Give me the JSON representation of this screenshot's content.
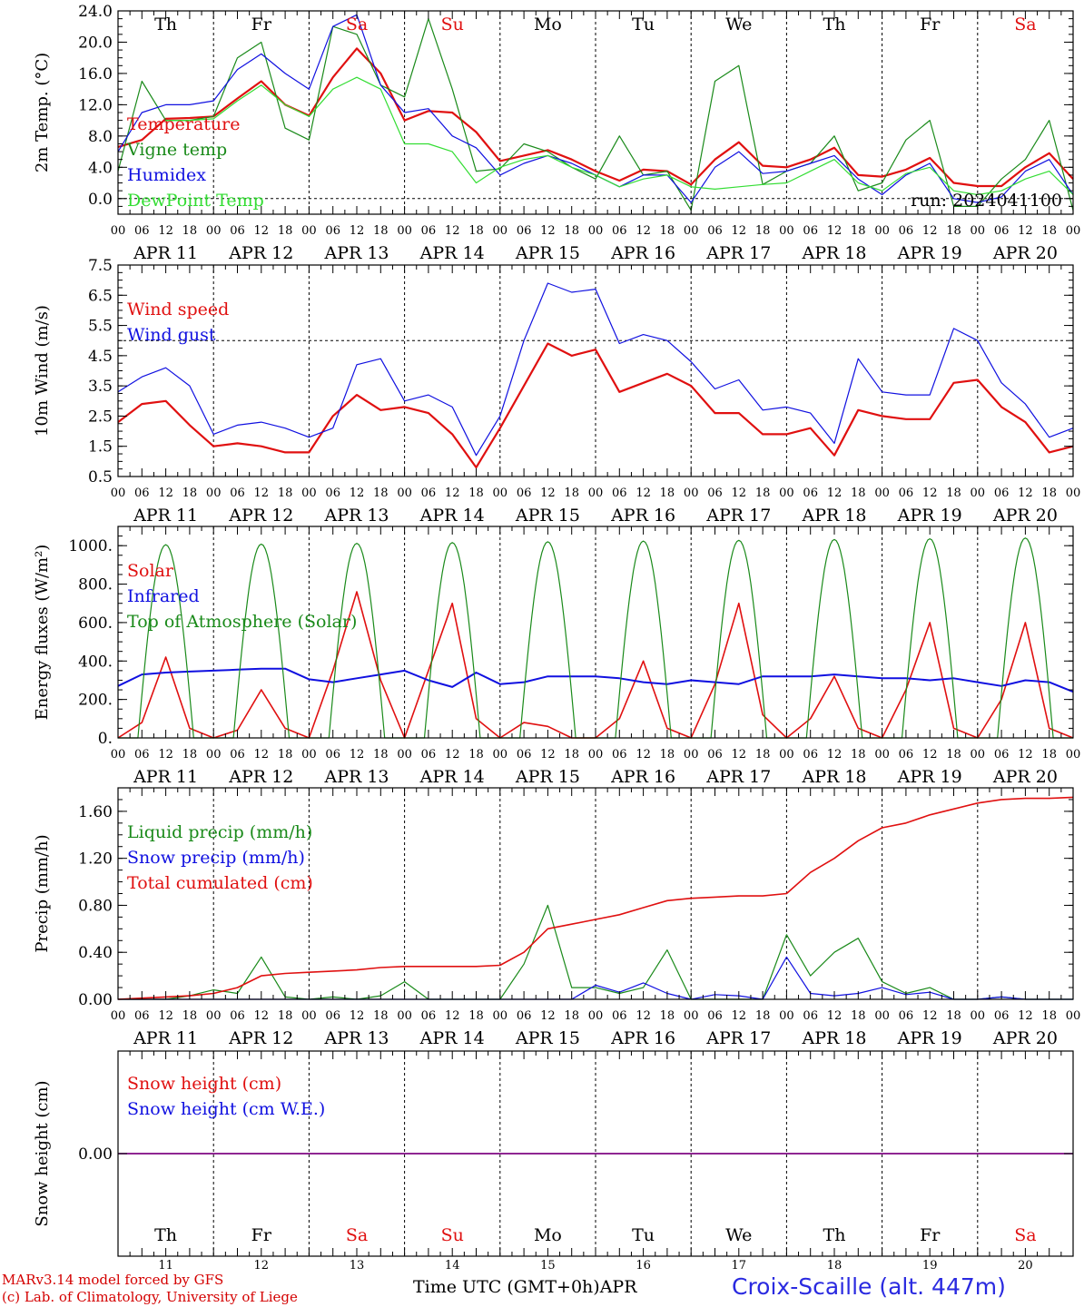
{
  "colors": {
    "red": "#e01010",
    "darkgreen": "#1a8a1a",
    "blue": "#1010e0",
    "lightgreen": "#33dd33",
    "purple": "#800080",
    "weekday": "#000000",
    "weekend": "#e01010"
  },
  "days": [
    "Th",
    "Fr",
    "Sa",
    "Su",
    "Mo",
    "Tu",
    "We",
    "Th",
    "Fr",
    "Sa"
  ],
  "weekend": [
    false,
    false,
    true,
    true,
    false,
    false,
    false,
    false,
    false,
    true
  ],
  "date_labels": [
    "APR 11",
    "APR 12",
    "APR 13",
    "APR 14",
    "APR 15",
    "APR 16",
    "APR 17",
    "APR 18",
    "APR 19",
    "APR 20"
  ],
  "day_numbers": [
    "11",
    "12",
    "13",
    "14",
    "15",
    "16",
    "17",
    "18",
    "19",
    "20"
  ],
  "hour_ticks": [
    "00",
    "06",
    "12",
    "18"
  ],
  "hour_end": "00",
  "footer": {
    "credit1": "MARv3.14 model forced by GFS",
    "credit2": "(c) Lab. of Climatology, University of Liege",
    "x_title": "Time UTC (GMT+0h)",
    "month": "APR",
    "station": "Croix-Scaille (alt. 447m)"
  },
  "chart_data": [
    {
      "type": "line",
      "ylabel": "2m Temp. (°C)",
      "ylim": [
        -2,
        24
      ],
      "yticks": [
        0,
        4,
        8,
        12,
        16,
        20,
        24
      ],
      "yticklabels": [
        "0.0",
        "4.0",
        "8.0",
        "12.0",
        "16.0",
        "20.0",
        "24.0"
      ],
      "annotation": "run: 2024041100",
      "show_days": true,
      "x_hours": [
        0,
        6,
        12,
        18,
        24,
        30,
        36,
        42,
        48,
        54,
        60,
        66,
        72,
        78,
        84,
        90,
        96,
        102,
        108,
        114,
        120,
        126,
        132,
        138,
        144,
        150,
        156,
        162,
        168,
        174,
        180,
        186,
        192,
        198,
        204,
        210,
        216,
        222,
        228,
        234,
        240
      ],
      "series": [
        {
          "name": "Temperature",
          "color": "red",
          "width": 2.2,
          "values": [
            6.6,
            7.5,
            10.2,
            10.3,
            10.5,
            12.8,
            15.0,
            12.0,
            10.6,
            15.5,
            19.2,
            16.0,
            10.0,
            11.2,
            11.0,
            8.5,
            4.8,
            5.5,
            6.2,
            5.0,
            3.5,
            2.3,
            3.7,
            3.5,
            1.8,
            5.0,
            7.2,
            4.2,
            4.0,
            5.0,
            6.5,
            3.0,
            2.8,
            3.7,
            5.2,
            2.0,
            1.6,
            1.6,
            4.0,
            5.8,
            2.5
          ]
        },
        {
          "name": "Vigne temp",
          "color": "darkgreen",
          "width": 1.2,
          "values": [
            3.5,
            15.0,
            10.0,
            10.0,
            10.5,
            18.0,
            20.0,
            9.0,
            7.5,
            22.0,
            21.0,
            14.5,
            13.0,
            23.0,
            14.0,
            3.5,
            3.8,
            7.0,
            6.0,
            4.0,
            2.5,
            8.0,
            3.0,
            3.5,
            -1.5,
            15.0,
            17.0,
            1.8,
            3.5,
            4.5,
            8.0,
            1.0,
            2.0,
            7.5,
            10.0,
            -1.0,
            -1.0,
            2.5,
            5.0,
            10.0,
            -1.5
          ]
        },
        {
          "name": "Humidex",
          "color": "blue",
          "width": 1.2,
          "values": [
            6.0,
            11.0,
            12.0,
            12.0,
            12.5,
            16.5,
            18.5,
            16.0,
            14.0,
            22.0,
            23.5,
            14.5,
            11.0,
            11.5,
            8.0,
            6.5,
            3.0,
            4.5,
            5.5,
            4.5,
            3.0,
            1.5,
            3.0,
            3.0,
            -0.5,
            4.0,
            6.0,
            3.2,
            3.5,
            4.5,
            5.5,
            2.5,
            0.5,
            3.0,
            4.5,
            0.0,
            -0.5,
            0.2,
            3.5,
            5.0,
            0.5
          ]
        },
        {
          "name": "DewPoint Temp",
          "color": "lightgreen",
          "width": 1.2,
          "values": [
            null,
            null,
            10.0,
            10.0,
            10.2,
            12.5,
            14.5,
            12.0,
            10.5,
            14.0,
            15.5,
            14.0,
            7.0,
            7.0,
            6.0,
            2.0,
            4.0,
            5.0,
            5.5,
            4.0,
            3.0,
            1.5,
            2.5,
            3.0,
            1.5,
            1.2,
            1.5,
            1.8,
            2.0,
            3.5,
            5.0,
            2.0,
            1.0,
            3.2,
            4.0,
            1.0,
            0.5,
            1.0,
            2.5,
            3.5,
            0.5
          ]
        }
      ]
    },
    {
      "type": "line",
      "ylabel": "10m Wind (m/s)",
      "ylim": [
        0.5,
        7.5
      ],
      "yticks": [
        0.5,
        1.5,
        2.5,
        3.5,
        4.5,
        5.5,
        6.5,
        7.5
      ],
      "yticklabels": [
        "0.5",
        "1.5",
        "2.5",
        "3.5",
        "4.5",
        "5.5",
        "6.5",
        "7.5"
      ],
      "hline": 5.0,
      "x_hours": [
        0,
        6,
        12,
        18,
        24,
        30,
        36,
        42,
        48,
        54,
        60,
        66,
        72,
        78,
        84,
        90,
        96,
        102,
        108,
        114,
        120,
        126,
        132,
        138,
        144,
        150,
        156,
        162,
        168,
        174,
        180,
        186,
        192,
        198,
        204,
        210,
        216,
        222,
        228,
        234,
        240
      ],
      "series": [
        {
          "name": "Wind speed",
          "color": "red",
          "width": 2.2,
          "values": [
            2.3,
            2.9,
            3.0,
            2.2,
            1.5,
            1.6,
            1.5,
            1.3,
            1.3,
            2.5,
            3.2,
            2.7,
            2.8,
            2.6,
            1.9,
            0.8,
            2.1,
            3.5,
            4.9,
            4.5,
            4.7,
            3.3,
            3.6,
            3.9,
            3.5,
            2.6,
            2.6,
            1.9,
            1.9,
            2.1,
            1.2,
            2.7,
            2.5,
            2.4,
            2.4,
            3.6,
            3.7,
            2.8,
            2.3,
            1.3,
            1.5
          ]
        },
        {
          "name": "Wind gust",
          "color": "blue",
          "width": 1.2,
          "values": [
            3.3,
            3.8,
            4.1,
            3.5,
            1.9,
            2.2,
            2.3,
            2.1,
            1.8,
            2.1,
            4.2,
            4.4,
            3.0,
            3.2,
            2.8,
            1.2,
            2.5,
            5.0,
            6.9,
            6.6,
            6.7,
            4.9,
            5.2,
            5.0,
            4.3,
            3.4,
            3.7,
            2.7,
            2.8,
            2.6,
            1.6,
            4.4,
            3.3,
            3.2,
            3.2,
            5.4,
            5.0,
            3.6,
            2.9,
            1.8,
            2.1
          ]
        }
      ]
    },
    {
      "type": "line",
      "ylabel": "Energy fluxes (W/m²)",
      "ylim": [
        0,
        1100
      ],
      "yticks": [
        0,
        200,
        400,
        600,
        800,
        1000
      ],
      "yticklabels": [
        "0.",
        "200.",
        "400.",
        "600.",
        "800.",
        "1000."
      ],
      "x_hours": [
        0,
        6,
        12,
        18,
        24,
        30,
        36,
        42,
        48,
        54,
        60,
        66,
        72,
        78,
        84,
        90,
        96,
        102,
        108,
        114,
        120,
        126,
        132,
        138,
        144,
        150,
        156,
        162,
        168,
        174,
        180,
        186,
        192,
        198,
        204,
        210,
        216,
        222,
        228,
        234,
        240
      ],
      "series": [
        {
          "name": "Solar",
          "color": "red",
          "width": 1.6,
          "values": [
            0,
            80,
            420,
            50,
            0,
            40,
            250,
            50,
            0,
            350,
            760,
            300,
            0,
            350,
            700,
            100,
            0,
            80,
            60,
            0,
            0,
            100,
            400,
            50,
            0,
            280,
            700,
            120,
            0,
            100,
            320,
            50,
            0,
            250,
            600,
            50,
            0,
            200,
            600,
            50,
            0
          ]
        },
        {
          "name": "Infrared",
          "color": "blue",
          "width": 2.0,
          "values": [
            270,
            330,
            340,
            345,
            350,
            355,
            360,
            360,
            305,
            290,
            310,
            330,
            350,
            300,
            265,
            340,
            280,
            290,
            320,
            320,
            320,
            310,
            290,
            280,
            300,
            290,
            280,
            320,
            320,
            320,
            330,
            320,
            310,
            310,
            300,
            310,
            290,
            270,
            300,
            290,
            240
          ]
        },
        {
          "name": "Top of Atmosphere (Solar)",
          "color": "darkgreen",
          "width": 1.2,
          "type": "toa",
          "peaks": [
            1005,
            1008,
            1012,
            1016,
            1020,
            1024,
            1028,
            1032,
            1036,
            1040
          ]
        }
      ]
    },
    {
      "type": "line",
      "ylabel": "Precip (mm/h)",
      "ylim": [
        0,
        1.8
      ],
      "yticks": [
        0,
        0.4,
        0.8,
        1.2,
        1.6
      ],
      "yticklabels": [
        "0.00",
        "0.40",
        "0.80",
        "1.20",
        "1.60"
      ],
      "x_hours": [
        0,
        6,
        12,
        18,
        24,
        30,
        36,
        42,
        48,
        54,
        60,
        66,
        72,
        78,
        84,
        90,
        96,
        102,
        108,
        114,
        120,
        126,
        132,
        138,
        144,
        150,
        156,
        162,
        168,
        174,
        180,
        186,
        192,
        198,
        204,
        210,
        216,
        222,
        228,
        234,
        240
      ],
      "series": [
        {
          "name": "Liquid precip (mm/h)",
          "color": "darkgreen",
          "width": 1.2,
          "values": [
            0,
            0,
            0,
            0.03,
            0.08,
            0.05,
            0.36,
            0.02,
            0,
            0.02,
            0,
            0.03,
            0.15,
            0,
            0,
            0,
            0,
            0.3,
            0.8,
            0.1,
            0.1,
            0.05,
            0.1,
            0.42,
            0,
            0,
            0,
            0,
            0.55,
            0.2,
            0.4,
            0.52,
            0.15,
            0.05,
            0.1,
            0,
            0,
            0.02,
            0,
            0,
            0
          ]
        },
        {
          "name": "Snow precip (mm/h)",
          "color": "blue",
          "width": 1.2,
          "values": [
            0,
            0,
            0,
            0,
            0,
            0,
            0,
            0,
            0,
            0,
            0,
            0,
            0,
            0,
            0,
            0,
            0,
            0,
            0,
            0,
            0.12,
            0.06,
            0.14,
            0.05,
            0,
            0.04,
            0.03,
            0,
            0.36,
            0.05,
            0.03,
            0.05,
            0.1,
            0.04,
            0.06,
            0,
            0,
            0.02,
            0,
            0,
            0
          ]
        },
        {
          "name": "Total cumulated (cm)",
          "color": "red",
          "width": 1.6,
          "values": [
            0,
            0.01,
            0.02,
            0.03,
            0.05,
            0.1,
            0.2,
            0.22,
            0.23,
            0.24,
            0.25,
            0.27,
            0.28,
            0.28,
            0.28,
            0.28,
            0.29,
            0.4,
            0.6,
            0.64,
            0.68,
            0.72,
            0.78,
            0.84,
            0.86,
            0.87,
            0.88,
            0.88,
            0.9,
            1.08,
            1.2,
            1.35,
            1.46,
            1.5,
            1.57,
            1.62,
            1.67,
            1.7,
            1.71,
            1.71,
            1.72
          ]
        }
      ]
    },
    {
      "type": "line",
      "ylabel": "Snow height (cm)",
      "ylim": [
        -1,
        1
      ],
      "yticks": [
        0
      ],
      "yticklabels": [
        "0.00"
      ],
      "show_days_bottom": true,
      "x_hours": [
        0,
        240
      ],
      "series": [
        {
          "name": "Snow height (cm)",
          "color": "red",
          "width": 1.2,
          "values": [
            0,
            0
          ]
        },
        {
          "name": "Snow height (cm W.E.)",
          "color": "blue",
          "width": 1.2,
          "values": [
            0,
            0
          ]
        },
        {
          "name": "",
          "color": "purple",
          "width": 1.6,
          "values": [
            0,
            0
          ]
        }
      ]
    }
  ]
}
